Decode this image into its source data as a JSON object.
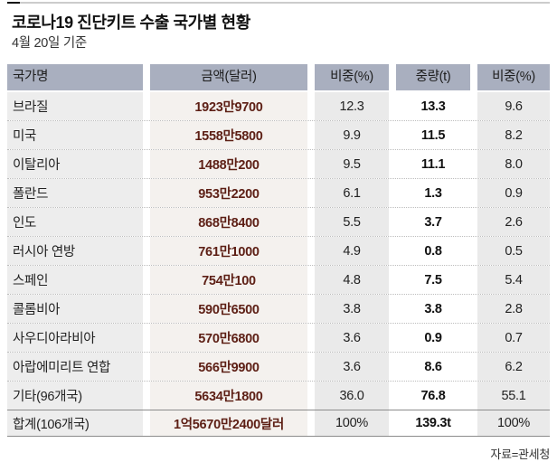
{
  "colors": {
    "header_bg": "#a9afbf",
    "country_col_bg": "#ededed",
    "amount_col_bg": "#f4f1ee",
    "share_col_bg": "#eaeaea",
    "weight_col_bg": "#ffffff",
    "amount_text": "#5d1f15",
    "top_rule_black": "#111111",
    "top_rule_gray": "#cccccc"
  },
  "chart_data": {
    "type": "table",
    "title": "코로나19 진단키트 수출 국가별 현황",
    "subtitle": "4월 20일 기준",
    "source": "자료=관세청",
    "columns": [
      "국가명",
      "금액(달러)",
      "비중(%)",
      "중량(t)",
      "비중(%)"
    ],
    "rows": [
      [
        "브라질",
        "1923만9700",
        "12.3",
        "13.3",
        "9.6"
      ],
      [
        "미국",
        "1558만5800",
        "9.9",
        "11.5",
        "8.2"
      ],
      [
        "이탈리아",
        "1488만200",
        "9.5",
        "11.1",
        "8.0"
      ],
      [
        "폴란드",
        "953만2200",
        "6.1",
        "1.3",
        "0.9"
      ],
      [
        "인도",
        "868만8400",
        "5.5",
        "3.7",
        "2.6"
      ],
      [
        "러시아 연방",
        "761만1000",
        "4.9",
        "0.8",
        "0.5"
      ],
      [
        "스페인",
        "754만100",
        "4.8",
        "7.5",
        "5.4"
      ],
      [
        "콜롬비아",
        "590만6500",
        "3.8",
        "3.8",
        "2.8"
      ],
      [
        "사우디아라비아",
        "570만6800",
        "3.6",
        "0.9",
        "0.7"
      ],
      [
        "아랍에미리트 연합",
        "566만9900",
        "3.6",
        "8.6",
        "6.2"
      ],
      [
        "기타(96개국)",
        "5634만1800",
        "36.0",
        "76.8",
        "55.1"
      ],
      [
        "합계(106개국)",
        "1억5670만2400달러",
        "100%",
        "139.3t",
        "100%"
      ]
    ]
  }
}
